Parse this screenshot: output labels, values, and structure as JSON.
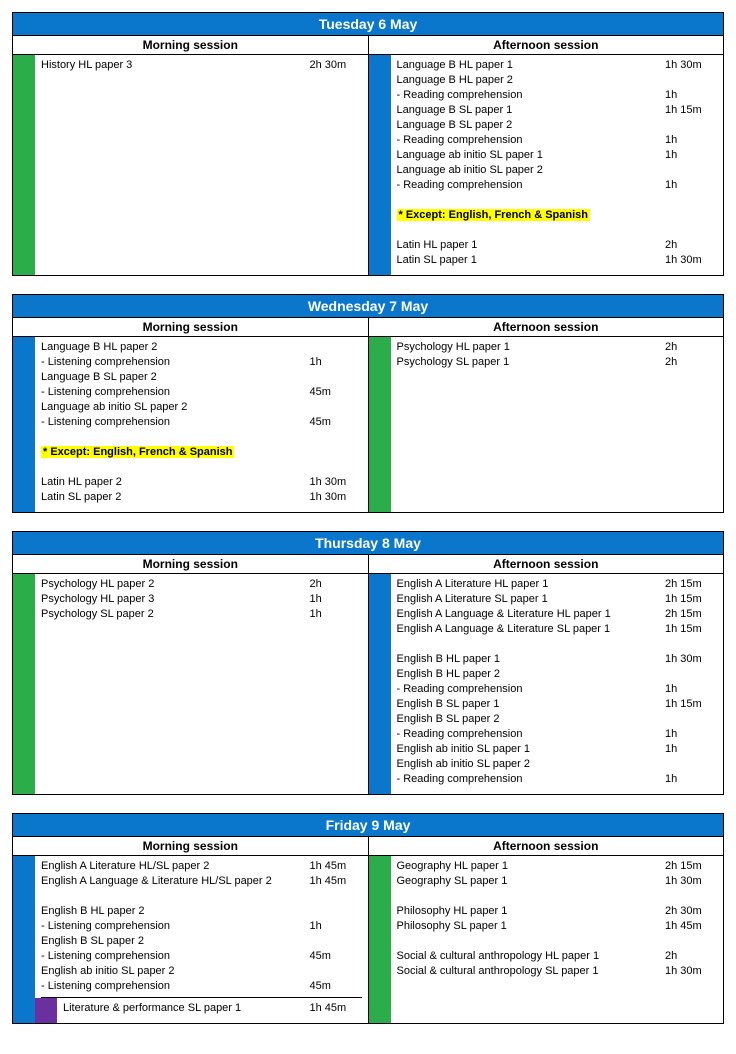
{
  "colors": {
    "header_bg": "#0a77cc",
    "green": "#2bae4a",
    "blue": "#0a77cc",
    "purple": "#6b2fa0",
    "highlight": "#ffff00"
  },
  "session_labels": {
    "morning": "Morning session",
    "afternoon": "Afternoon session"
  },
  "days": [
    {
      "title": "Tuesday 6 May",
      "morning": {
        "color": "green",
        "lines": [
          {
            "label": "History HL paper 3",
            "dur": "2h 30m"
          }
        ]
      },
      "afternoon": {
        "color": "blue",
        "lines": [
          {
            "label": "Language B HL paper 1",
            "dur": "1h 30m"
          },
          {
            "label": "Language B HL paper 2",
            "dur": ""
          },
          {
            "label": "- Reading comprehension",
            "dur": "1h"
          },
          {
            "label": "Language B SL paper 1",
            "dur": "1h 15m"
          },
          {
            "label": "Language B SL paper 2",
            "dur": ""
          },
          {
            "label": "- Reading comprehension",
            "dur": "1h"
          },
          {
            "label": "Language ab initio SL paper 1",
            "dur": "1h"
          },
          {
            "label": "Language ab initio SL paper 2",
            "dur": ""
          },
          {
            "label": "- Reading comprehension",
            "dur": "1h"
          },
          {
            "label": "",
            "dur": ""
          },
          {
            "label": "* Except: English, French & Spanish",
            "dur": "",
            "highlight": true
          },
          {
            "label": "",
            "dur": ""
          },
          {
            "label": "Latin HL paper 1",
            "dur": "2h"
          },
          {
            "label": "Latin SL paper 1",
            "dur": "1h 30m"
          }
        ]
      }
    },
    {
      "title": "Wednesday 7 May",
      "morning": {
        "color": "blue",
        "lines": [
          {
            "label": "Language B HL paper 2",
            "dur": ""
          },
          {
            "label": "- Listening comprehension",
            "dur": "1h"
          },
          {
            "label": "Language B SL paper 2",
            "dur": ""
          },
          {
            "label": "- Listening comprehension",
            "dur": "45m"
          },
          {
            "label": "Language ab initio SL paper 2",
            "dur": ""
          },
          {
            "label": "- Listening comprehension",
            "dur": "45m"
          },
          {
            "label": "",
            "dur": ""
          },
          {
            "label": "* Except: English, French & Spanish",
            "dur": "",
            "highlight": true
          },
          {
            "label": "",
            "dur": ""
          },
          {
            "label": "Latin HL paper 2",
            "dur": "1h 30m"
          },
          {
            "label": "Latin SL paper 2",
            "dur": "1h 30m"
          }
        ]
      },
      "afternoon": {
        "color": "green",
        "lines": [
          {
            "label": "Psychology HL paper 1",
            "dur": "2h"
          },
          {
            "label": "Psychology SL paper 1",
            "dur": "2h"
          }
        ]
      }
    },
    {
      "title": "Thursday 8 May",
      "morning": {
        "color": "green",
        "lines": [
          {
            "label": "Psychology HL paper 2",
            "dur": "2h"
          },
          {
            "label": "Psychology HL paper 3",
            "dur": "1h"
          },
          {
            "label": "Psychology SL paper 2",
            "dur": "1h"
          }
        ]
      },
      "afternoon": {
        "color": "blue",
        "lines": [
          {
            "label": "English A Literature HL paper 1",
            "dur": "2h 15m"
          },
          {
            "label": "English A Literature SL paper 1",
            "dur": "1h 15m"
          },
          {
            "label": "English A Language & Literature HL paper 1",
            "dur": "2h 15m"
          },
          {
            "label": "English A Language & Literature SL paper 1",
            "dur": "1h 15m"
          },
          {
            "label": "",
            "dur": ""
          },
          {
            "label": "English B HL paper 1",
            "dur": "1h 30m"
          },
          {
            "label": "English B HL paper 2",
            "dur": ""
          },
          {
            "label": "- Reading comprehension",
            "dur": "1h"
          },
          {
            "label": "English B SL paper 1",
            "dur": "1h 15m"
          },
          {
            "label": "English B SL paper 2",
            "dur": ""
          },
          {
            "label": "- Reading comprehension",
            "dur": "1h"
          },
          {
            "label": "English ab initio SL paper 1",
            "dur": "1h"
          },
          {
            "label": "English ab initio SL paper 2",
            "dur": ""
          },
          {
            "label": "- Reading comprehension",
            "dur": "1h"
          }
        ]
      }
    },
    {
      "title": "Friday 9 May",
      "morning": {
        "color": "blue",
        "lines": [
          {
            "label": "English A Literature HL/SL paper 2",
            "dur": "1h 45m"
          },
          {
            "label": "English A Language & Literature HL/SL paper 2",
            "dur": "1h 45m"
          },
          {
            "label": "",
            "dur": ""
          },
          {
            "label": "English B HL paper 2",
            "dur": ""
          },
          {
            "label": "- Listening comprehension",
            "dur": "1h"
          },
          {
            "label": "English B SL paper 2",
            "dur": ""
          },
          {
            "label": "- Listening comprehension",
            "dur": "45m"
          },
          {
            "label": "English ab initio SL paper 2",
            "dur": ""
          },
          {
            "label": "- Listening comprehension",
            "dur": "45m"
          }
        ],
        "sub": {
          "color": "purple",
          "lines": [
            {
              "label": "Literature & performance SL paper 1",
              "dur": "1h 45m"
            }
          ]
        }
      },
      "afternoon": {
        "color": "green",
        "lines": [
          {
            "label": "Geography HL paper 1",
            "dur": "2h 15m"
          },
          {
            "label": "Geography SL paper 1",
            "dur": "1h 30m"
          },
          {
            "label": "",
            "dur": ""
          },
          {
            "label": "Philosophy HL paper 1",
            "dur": "2h 30m"
          },
          {
            "label": "Philosophy SL paper 1",
            "dur": "1h 45m"
          },
          {
            "label": "",
            "dur": ""
          },
          {
            "label": "Social & cultural anthropology HL paper 1",
            "dur": "2h"
          },
          {
            "label": "Social & cultural anthropology SL paper 1",
            "dur": "1h 30m"
          }
        ]
      }
    }
  ]
}
